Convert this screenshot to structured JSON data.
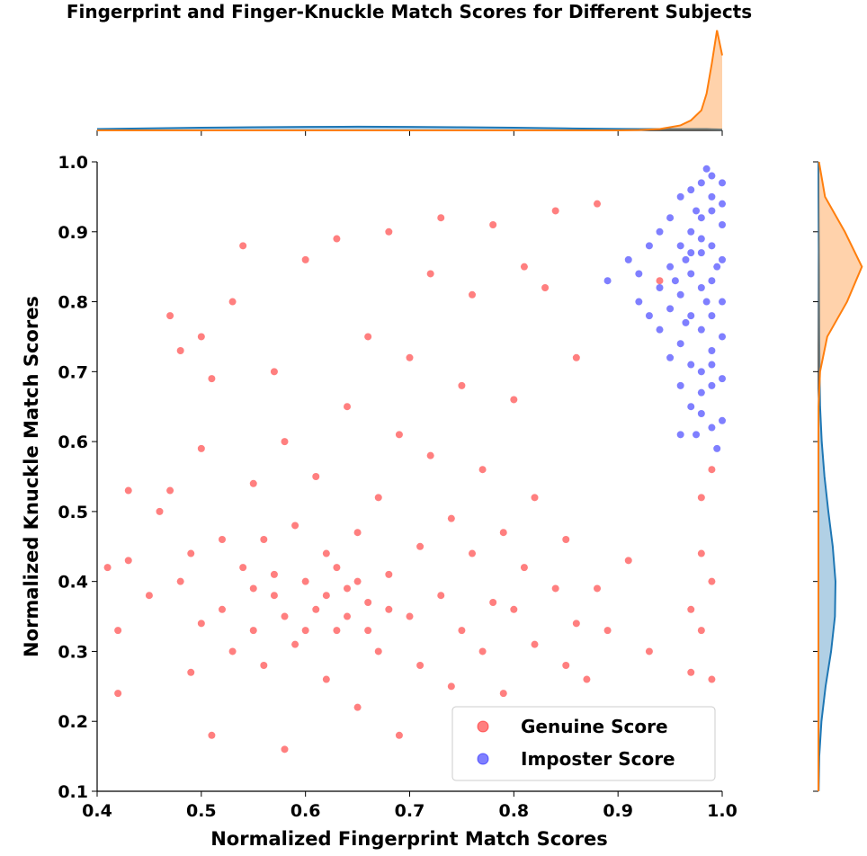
{
  "chart_data": {
    "type": "scatter",
    "title": "Fingerprint and Finger-Knuckle Match Scores for Different Subjects",
    "x_label": "Normalized Fingerprint Match Scores",
    "y_label": "Normalized Knuckle Match Scores",
    "xlim": [
      0.4,
      1.0
    ],
    "ylim": [
      0.1,
      1.0
    ],
    "xticks": [
      0.4,
      0.5,
      0.6,
      0.7,
      0.8,
      0.9,
      {
        "value": 1.0,
        "label": "1.0"
      }
    ],
    "yticks": [
      0.1,
      0.2,
      0.3,
      0.4,
      0.5,
      0.6,
      0.7,
      0.8,
      0.9,
      {
        "value": 1.0,
        "label": "1.0"
      }
    ],
    "legend_position": "lower right",
    "series": [
      {
        "name": "Genuine Score",
        "color": "#ff0000",
        "x": [
          0.41,
          0.42,
          0.42,
          0.43,
          0.43,
          0.45,
          0.46,
          0.47,
          0.47,
          0.48,
          0.48,
          0.49,
          0.49,
          0.5,
          0.5,
          0.5,
          0.51,
          0.51,
          0.52,
          0.52,
          0.53,
          0.53,
          0.54,
          0.54,
          0.55,
          0.55,
          0.56,
          0.56,
          0.57,
          0.57,
          0.58,
          0.58,
          0.59,
          0.59,
          0.6,
          0.6,
          0.61,
          0.61,
          0.62,
          0.62,
          0.63,
          0.63,
          0.64,
          0.64,
          0.65,
          0.65,
          0.66,
          0.66,
          0.67,
          0.67,
          0.68,
          0.68,
          0.69,
          0.69,
          0.7,
          0.7,
          0.71,
          0.71,
          0.72,
          0.72,
          0.73,
          0.73,
          0.74,
          0.74,
          0.75,
          0.75,
          0.76,
          0.76,
          0.77,
          0.77,
          0.78,
          0.78,
          0.79,
          0.79,
          0.8,
          0.8,
          0.81,
          0.81,
          0.82,
          0.82,
          0.83,
          0.84,
          0.84,
          0.85,
          0.85,
          0.86,
          0.86,
          0.87,
          0.88,
          0.88,
          0.89,
          0.91,
          0.93,
          0.94,
          0.97,
          0.97,
          0.98,
          0.98,
          0.99,
          0.99,
          0.99,
          0.98,
          0.58,
          0.6,
          0.62,
          0.63,
          0.64,
          0.65,
          0.66,
          0.57,
          0.55,
          0.68
        ],
        "y": [
          0.42,
          0.33,
          0.24,
          0.53,
          0.43,
          0.38,
          0.5,
          0.78,
          0.53,
          0.73,
          0.4,
          0.44,
          0.27,
          0.75,
          0.34,
          0.59,
          0.18,
          0.69,
          0.46,
          0.36,
          0.8,
          0.3,
          0.42,
          0.88,
          0.54,
          0.33,
          0.28,
          0.46,
          0.7,
          0.38,
          0.16,
          0.6,
          0.31,
          0.48,
          0.4,
          0.86,
          0.36,
          0.55,
          0.26,
          0.44,
          0.89,
          0.33,
          0.39,
          0.65,
          0.22,
          0.47,
          0.37,
          0.75,
          0.3,
          0.52,
          0.9,
          0.41,
          0.18,
          0.61,
          0.35,
          0.72,
          0.45,
          0.28,
          0.58,
          0.84,
          0.38,
          0.92,
          0.49,
          0.25,
          0.33,
          0.68,
          0.44,
          0.81,
          0.3,
          0.56,
          0.91,
          0.37,
          0.47,
          0.24,
          0.66,
          0.36,
          0.85,
          0.42,
          0.31,
          0.52,
          0.82,
          0.39,
          0.93,
          0.46,
          0.28,
          0.72,
          0.34,
          0.26,
          0.94,
          0.39,
          0.33,
          0.43,
          0.3,
          0.83,
          0.36,
          0.27,
          0.44,
          0.52,
          0.4,
          0.26,
          0.56,
          0.33,
          0.35,
          0.33,
          0.38,
          0.42,
          0.35,
          0.4,
          0.33,
          0.41,
          0.39,
          0.36
        ]
      },
      {
        "name": "Imposter Score",
        "color": "#0000ff",
        "x": [
          0.89,
          0.91,
          0.92,
          0.92,
          0.93,
          0.93,
          0.94,
          0.94,
          0.94,
          0.95,
          0.95,
          0.95,
          0.95,
          0.96,
          0.96,
          0.96,
          0.96,
          0.96,
          0.97,
          0.97,
          0.97,
          0.97,
          0.97,
          0.97,
          0.98,
          0.98,
          0.98,
          0.98,
          0.98,
          0.98,
          0.98,
          0.99,
          0.99,
          0.99,
          0.99,
          0.99,
          0.99,
          0.99,
          0.99,
          1.0,
          1.0,
          1.0,
          1.0,
          1.0,
          1.0,
          1.0,
          0.985,
          0.995,
          0.975,
          0.965,
          0.985,
          0.975,
          0.995,
          0.965,
          0.955,
          0.99,
          0.98,
          1.0,
          0.97,
          0.99,
          0.98,
          0.96
        ],
        "y": [
          0.83,
          0.86,
          0.8,
          0.84,
          0.88,
          0.78,
          0.9,
          0.82,
          0.76,
          0.92,
          0.85,
          0.79,
          0.72,
          0.95,
          0.88,
          0.81,
          0.74,
          0.68,
          0.96,
          0.9,
          0.84,
          0.78,
          0.71,
          0.65,
          0.97,
          0.92,
          0.87,
          0.82,
          0.76,
          0.7,
          0.64,
          0.98,
          0.93,
          0.88,
          0.83,
          0.78,
          0.73,
          0.68,
          0.62,
          0.97,
          0.91,
          0.86,
          0.8,
          0.75,
          0.69,
          0.63,
          0.99,
          0.59,
          0.61,
          0.86,
          0.8,
          0.93,
          0.85,
          0.77,
          0.83,
          0.95,
          0.89,
          0.94,
          0.87,
          0.71,
          0.67,
          0.61
        ]
      }
    ],
    "marginals": {
      "top": {
        "x": [
          0.4,
          0.45,
          0.5,
          0.55,
          0.6,
          0.65,
          0.7,
          0.75,
          0.8,
          0.85,
          0.9,
          0.92,
          0.94,
          0.96,
          0.97,
          0.98,
          0.985,
          0.99,
          0.995,
          1.0
        ],
        "lim": [
          0,
          62
        ],
        "genuine": {
          "color": "#1f77b4",
          "values": [
            0.8,
            1.2,
            1.6,
            1.9,
            2.1,
            2.2,
            2.1,
            1.9,
            1.6,
            1.2,
            0.9,
            0.8,
            0.8,
            0.8,
            0.8,
            0.8,
            0.8,
            0.7,
            0.6,
            0.5
          ]
        },
        "imposter": {
          "color": "#ff7f0e",
          "values": [
            0,
            0,
            0,
            0,
            0,
            0,
            0,
            0,
            0,
            0,
            0,
            0.2,
            0.8,
            3,
            6,
            12,
            22,
            40,
            60,
            45
          ]
        }
      },
      "right": {
        "y": [
          0.1,
          0.15,
          0.2,
          0.25,
          0.3,
          0.35,
          0.4,
          0.45,
          0.5,
          0.55,
          0.6,
          0.65,
          0.7,
          0.75,
          0.8,
          0.85,
          0.9,
          0.95,
          1.0
        ],
        "lim": [
          0,
          8.5
        ],
        "genuine": {
          "color": "#1f77b4",
          "values": [
            0.04,
            0.15,
            0.55,
            1.3,
            2.3,
            3.0,
            3.1,
            2.6,
            1.8,
            1.1,
            0.6,
            0.3,
            0.2,
            0.15,
            0.12,
            0.1,
            0.06,
            0.02,
            0
          ]
        },
        "imposter": {
          "color": "#ff7f0e",
          "values": [
            0,
            0,
            0,
            0,
            0,
            0,
            0,
            0,
            0,
            0,
            0,
            0.02,
            0.3,
            1.6,
            5.2,
            7.9,
            4.8,
            1.2,
            0.1
          ]
        }
      }
    }
  }
}
